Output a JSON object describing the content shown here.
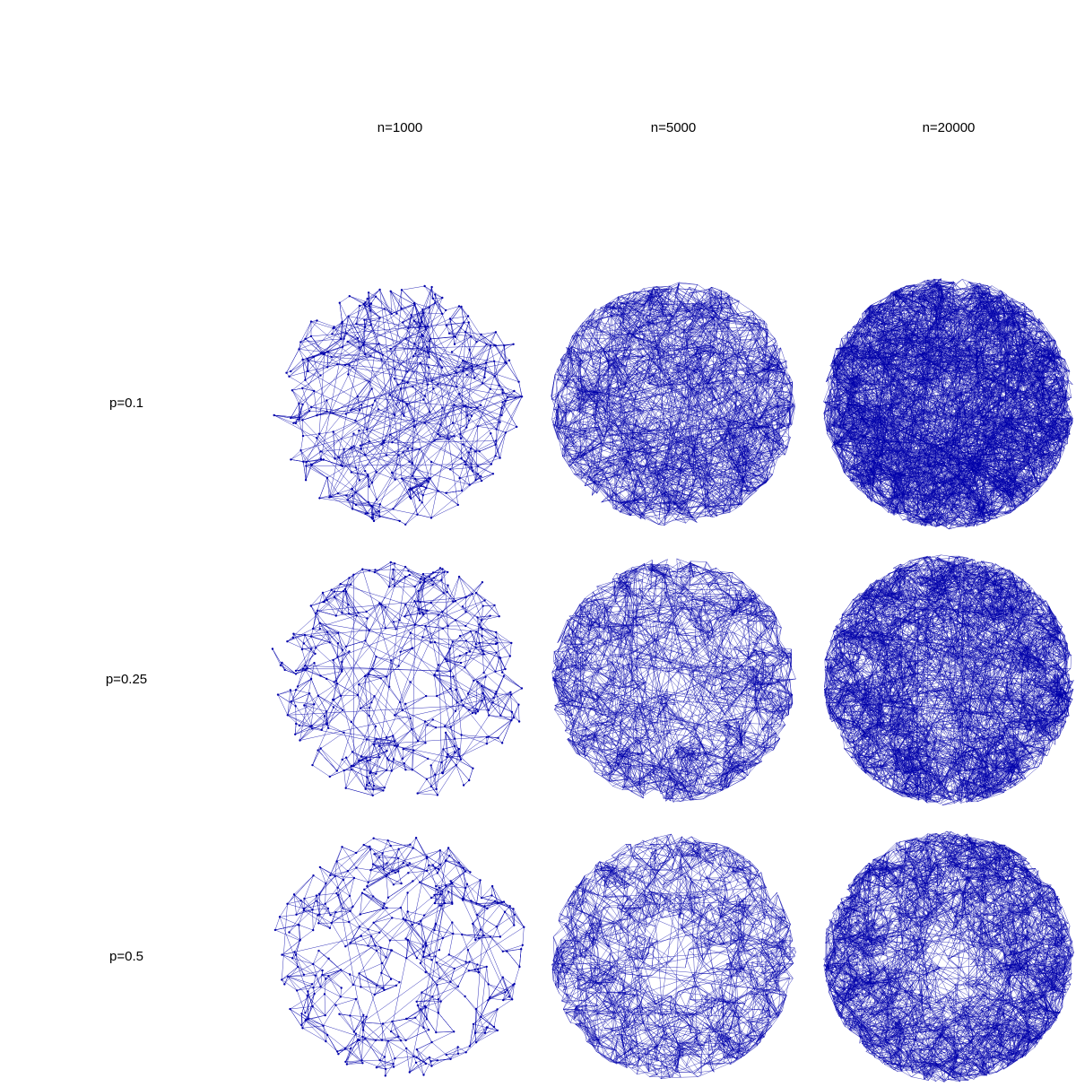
{
  "columns": [
    "n=1000",
    "n=5000",
    "n=20000"
  ],
  "rows": [
    "p=0.1",
    "p=0.25",
    "p=0.5"
  ]
}
